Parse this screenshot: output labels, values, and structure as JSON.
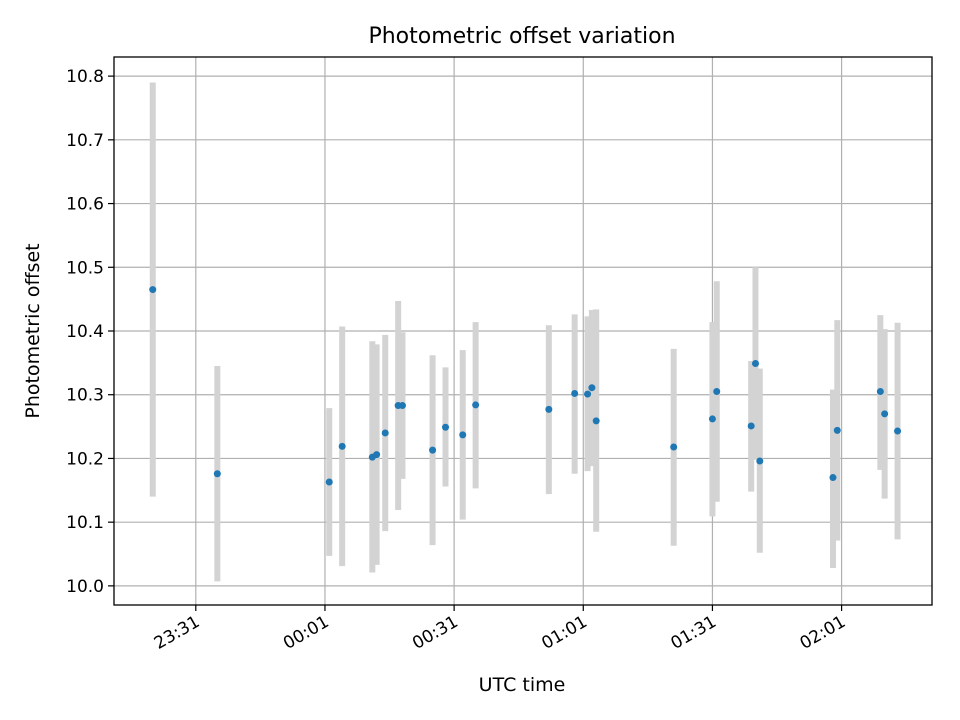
{
  "chart_data": {
    "type": "scatter",
    "title": "Photometric offset variation",
    "xlabel": "UTC time",
    "ylabel": "Photometric offset",
    "grid": true,
    "legend": "none",
    "x_unit": "HH:MM UTC",
    "x_ticks": [
      "23:31",
      "00:01",
      "00:31",
      "01:01",
      "01:31",
      "02:01"
    ],
    "x_tick_values": [
      "23:31",
      "00:01",
      "00:31",
      "01:01",
      "01:31",
      "02:01"
    ],
    "xlim": [
      "23:12",
      "02:22"
    ],
    "y_ticks": [
      "10.0",
      "10.1",
      "10.2",
      "10.3",
      "10.4",
      "10.5",
      "10.6",
      "10.7",
      "10.8"
    ],
    "y_tick_values": [
      10.0,
      10.1,
      10.2,
      10.3,
      10.4,
      10.5,
      10.6,
      10.7,
      10.8
    ],
    "ylim": [
      9.97,
      10.83
    ],
    "colors": {
      "points": "#1f77b4",
      "error_bars": "#d3d3d3",
      "grid": "#b0b0b0"
    },
    "points": [
      {
        "x": "23:21",
        "y": 10.465,
        "err_low": 10.14,
        "err_high": 10.79
      },
      {
        "x": "23:36",
        "y": 10.176,
        "err_low": 10.007,
        "err_high": 10.345
      },
      {
        "x": "00:02",
        "y": 10.163,
        "err_low": 10.047,
        "err_high": 10.279
      },
      {
        "x": "00:05",
        "y": 10.219,
        "err_low": 10.031,
        "err_high": 10.407
      },
      {
        "x": "00:12",
        "y": 10.202,
        "err_low": 10.021,
        "err_high": 10.384
      },
      {
        "x": "00:13",
        "y": 10.206,
        "err_low": 10.033,
        "err_high": 10.379
      },
      {
        "x": "00:15",
        "y": 10.24,
        "err_low": 10.086,
        "err_high": 10.394
      },
      {
        "x": "00:18",
        "y": 10.283,
        "err_low": 10.119,
        "err_high": 10.447
      },
      {
        "x": "00:19",
        "y": 10.283,
        "err_low": 10.168,
        "err_high": 10.398
      },
      {
        "x": "00:26",
        "y": 10.213,
        "err_low": 10.064,
        "err_high": 10.362
      },
      {
        "x": "00:29",
        "y": 10.249,
        "err_low": 10.156,
        "err_high": 10.343
      },
      {
        "x": "00:33",
        "y": 10.237,
        "err_low": 10.104,
        "err_high": 10.37
      },
      {
        "x": "00:36",
        "y": 10.284,
        "err_low": 10.153,
        "err_high": 10.414
      },
      {
        "x": "00:53",
        "y": 10.277,
        "err_low": 10.144,
        "err_high": 10.409
      },
      {
        "x": "00:59",
        "y": 10.302,
        "err_low": 10.176,
        "err_high": 10.426
      },
      {
        "x": "01:02",
        "y": 10.301,
        "err_low": 10.18,
        "err_high": 10.423
      },
      {
        "x": "01:03",
        "y": 10.311,
        "err_low": 10.188,
        "err_high": 10.433
      },
      {
        "x": "01:04",
        "y": 10.259,
        "err_low": 10.085,
        "err_high": 10.434
      },
      {
        "x": "01:22",
        "y": 10.218,
        "err_low": 10.063,
        "err_high": 10.372
      },
      {
        "x": "01:31",
        "y": 10.262,
        "err_low": 10.109,
        "err_high": 10.414
      },
      {
        "x": "01:32",
        "y": 10.305,
        "err_low": 10.132,
        "err_high": 10.478
      },
      {
        "x": "01:40",
        "y": 10.251,
        "err_low": 10.148,
        "err_high": 10.353
      },
      {
        "x": "01:41",
        "y": 10.349,
        "err_low": 10.198,
        "err_high": 10.5
      },
      {
        "x": "01:42",
        "y": 10.196,
        "err_low": 10.052,
        "err_high": 10.341
      },
      {
        "x": "01:59",
        "y": 10.17,
        "err_low": 10.028,
        "err_high": 10.308
      },
      {
        "x": "02:00",
        "y": 10.244,
        "err_low": 10.071,
        "err_high": 10.417
      },
      {
        "x": "02:10",
        "y": 10.305,
        "err_low": 10.182,
        "err_high": 10.425
      },
      {
        "x": "02:11",
        "y": 10.27,
        "err_low": 10.137,
        "err_high": 10.403
      },
      {
        "x": "02:14",
        "y": 10.243,
        "err_low": 10.073,
        "err_high": 10.413
      }
    ]
  }
}
